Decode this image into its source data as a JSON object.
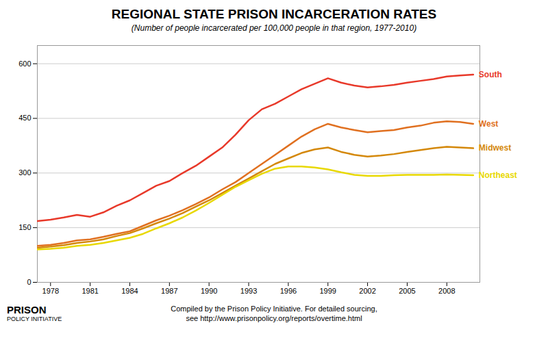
{
  "chart_data": {
    "type": "line",
    "title": "REGIONAL STATE PRISON INCARCERATION RATES",
    "subtitle": "(Number of people incarcerated per 100,000 people in that region, 1977-2010)",
    "x": [
      1977,
      1978,
      1979,
      1980,
      1981,
      1982,
      1983,
      1984,
      1985,
      1986,
      1987,
      1988,
      1989,
      1990,
      1991,
      1992,
      1993,
      1994,
      1995,
      1996,
      1997,
      1998,
      1999,
      2000,
      2001,
      2002,
      2003,
      2004,
      2005,
      2006,
      2007,
      2008,
      2009,
      2010
    ],
    "series": [
      {
        "name": "South",
        "color": "#e8392a",
        "values": [
          168,
          172,
          178,
          185,
          180,
          192,
          210,
          225,
          245,
          265,
          278,
          300,
          320,
          345,
          370,
          405,
          445,
          475,
          490,
          510,
          530,
          545,
          560,
          548,
          540,
          535,
          538,
          542,
          548,
          553,
          558,
          565,
          568,
          570
        ]
      },
      {
        "name": "West",
        "color": "#e07020",
        "values": [
          100,
          103,
          108,
          115,
          118,
          125,
          133,
          140,
          155,
          170,
          183,
          198,
          215,
          233,
          255,
          275,
          300,
          325,
          350,
          375,
          400,
          420,
          435,
          425,
          418,
          412,
          415,
          418,
          425,
          430,
          438,
          442,
          440,
          435
        ]
      },
      {
        "name": "Midwest",
        "color": "#d4880a",
        "values": [
          95,
          98,
          102,
          108,
          112,
          118,
          127,
          135,
          148,
          162,
          175,
          190,
          208,
          225,
          245,
          265,
          285,
          305,
          325,
          340,
          355,
          365,
          370,
          358,
          350,
          345,
          348,
          352,
          358,
          363,
          368,
          372,
          370,
          368
        ]
      },
      {
        "name": "Northeast",
        "color": "#e8d800",
        "values": [
          90,
          92,
          95,
          100,
          103,
          108,
          115,
          122,
          133,
          148,
          162,
          178,
          197,
          218,
          240,
          262,
          280,
          298,
          312,
          318,
          318,
          315,
          310,
          302,
          295,
          292,
          292,
          294,
          295,
          295,
          295,
          296,
          295,
          294
        ]
      }
    ],
    "xlim": [
      1977,
      2010.5
    ],
    "xticks": [
      1978,
      1981,
      1984,
      1987,
      1990,
      1993,
      1996,
      1999,
      2002,
      2005,
      2008
    ],
    "ylim": [
      0,
      650
    ],
    "yticks": [
      0,
      150,
      300,
      450,
      600
    ],
    "grid": true,
    "annotations": [
      "Compiled by the Prison Policy Initiative. For detailed sourcing,",
      "see http://www.prisonpolicy.org/reports/overtime.html",
      "PRISON",
      "POLICY INITIATIVE"
    ]
  }
}
